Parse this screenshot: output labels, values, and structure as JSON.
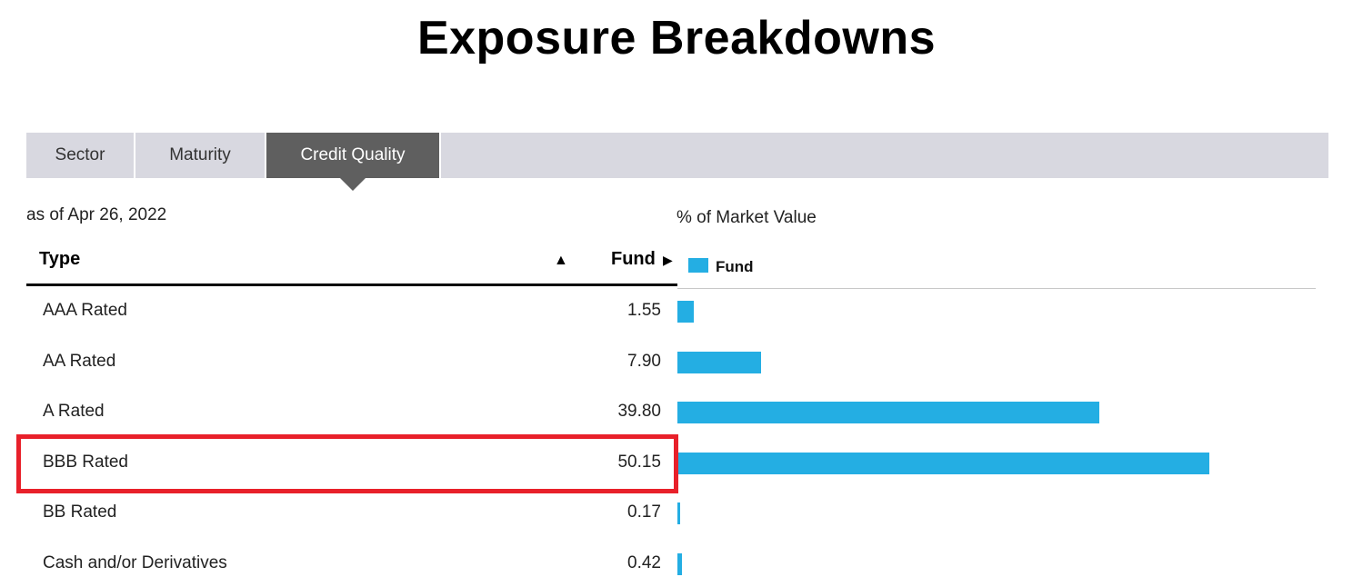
{
  "page": {
    "title": "Exposure Breakdowns"
  },
  "tabs": [
    {
      "label": "Sector",
      "active": false
    },
    {
      "label": "Maturity",
      "active": false
    },
    {
      "label": "Credit Quality",
      "active": true
    }
  ],
  "table": {
    "as_of": "as of Apr 26, 2022",
    "columns": {
      "type": "Type",
      "fund": "Fund"
    },
    "sort_ascending_icon": "▲",
    "sort_fund_icon": "▶",
    "rows": [
      {
        "type": "AAA Rated",
        "fund": "1.55"
      },
      {
        "type": "AA Rated",
        "fund": "7.90"
      },
      {
        "type": "A Rated",
        "fund": "39.80"
      },
      {
        "type": "BBB Rated",
        "fund": "50.15"
      },
      {
        "type": "BB Rated",
        "fund": "0.17"
      },
      {
        "type": "Cash and/or Derivatives",
        "fund": "0.42"
      }
    ],
    "highlighted_row": "BBB Rated"
  },
  "colors": {
    "bar": "#24aee3",
    "active_tab": "#5f5f5f",
    "tabbar": "#d8d8e0",
    "highlight": "#e8202a"
  },
  "chart_data": {
    "type": "bar",
    "orientation": "horizontal",
    "title": "% of Market Value",
    "legend": [
      "Fund"
    ],
    "categories": [
      "AAA Rated",
      "AA Rated",
      "A Rated",
      "BBB Rated",
      "BB Rated",
      "Cash and/or Derivatives"
    ],
    "series": [
      {
        "name": "Fund",
        "values": [
          1.55,
          7.9,
          39.8,
          50.15,
          0.17,
          0.42
        ]
      }
    ],
    "xlim": [
      0,
      60
    ],
    "grid": false
  }
}
